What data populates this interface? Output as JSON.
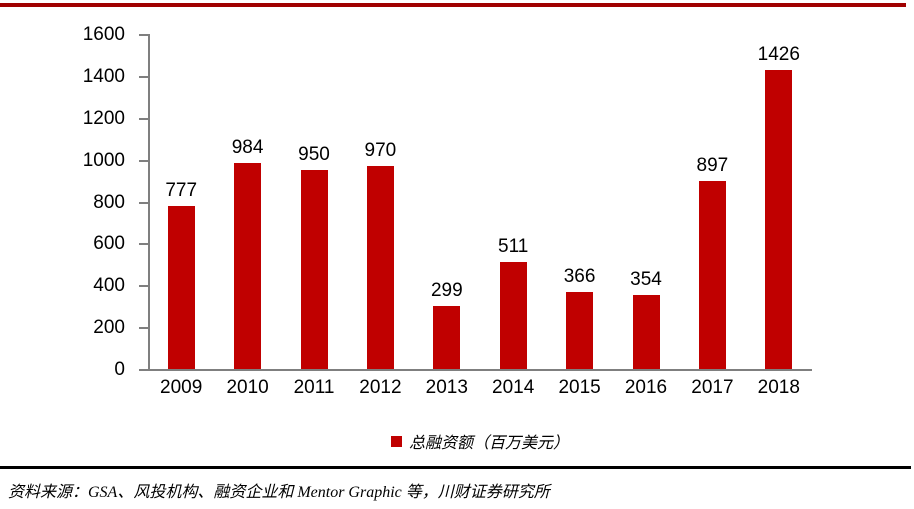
{
  "header": {
    "top_rule_color": "#a00000"
  },
  "chart_data": {
    "type": "bar",
    "title": "",
    "xlabel": "",
    "ylabel": "",
    "categories": [
      "2009",
      "2010",
      "2011",
      "2012",
      "2013",
      "2014",
      "2015",
      "2016",
      "2017",
      "2018"
    ],
    "values": [
      777,
      984,
      950,
      970,
      299,
      511,
      366,
      354,
      897,
      1426
    ],
    "data_labels": true,
    "ylim": [
      0,
      1600
    ],
    "yticks": [
      0,
      200,
      400,
      600,
      800,
      1000,
      1200,
      1400,
      1600
    ],
    "grid": false,
    "bar_color": "#c00000",
    "axis_color": "#7f7f7f",
    "label_color": "#000000",
    "legend": {
      "label": "总融资额（百万美元）",
      "marker_color": "#c00000",
      "position": "bottom-center"
    }
  },
  "footer": {
    "divider_color": "#000000",
    "source_text": "资料来源：GSA、风投机构、融资企业和 Mentor Graphic 等，川财证券研究所"
  }
}
